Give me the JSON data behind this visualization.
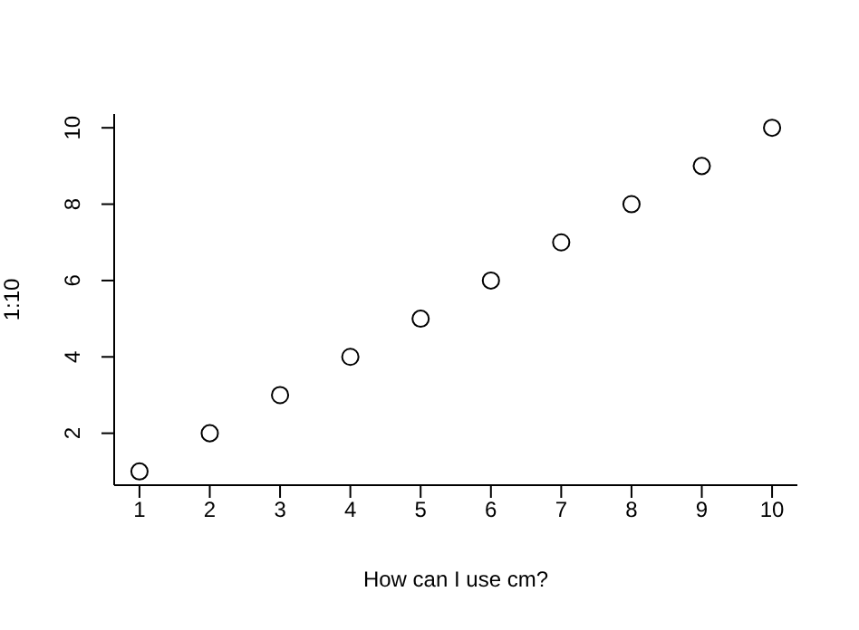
{
  "chart_data": {
    "type": "scatter",
    "xlabel": "How can I use cm?",
    "ylabel": "1:10",
    "x": [
      1,
      2,
      3,
      4,
      5,
      6,
      7,
      8,
      9,
      10
    ],
    "series": [
      {
        "color": "#000000",
        "values": [
          1,
          2,
          3,
          4,
          5,
          6,
          7,
          8,
          9,
          10
        ]
      }
    ],
    "xlim": [
      0.64,
      10.36
    ],
    "ylim": [
      0.64,
      10.36
    ],
    "xticks": [
      1,
      2,
      3,
      4,
      5,
      6,
      7,
      8,
      9,
      10
    ],
    "yticks": [
      2,
      4,
      6,
      8,
      10
    ],
    "marker": "circle",
    "grid": false,
    "legend": false
  }
}
